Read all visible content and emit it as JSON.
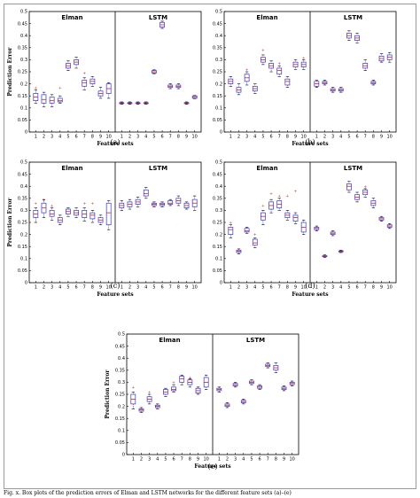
{
  "colors": {
    "box": "#3333cc",
    "median": "#cc2222",
    "outlier": "#cc2222",
    "axis": "#000000"
  },
  "chart_data": [
    {
      "type": "boxplot",
      "caption": "(a)",
      "panels": [
        "Elman",
        "LSTM"
      ],
      "xlabel": "Feature sets",
      "ylabel": "Prediction Error",
      "ylim": [
        0,
        0.5
      ],
      "yticks": [
        0,
        0.05,
        0.1,
        0.15,
        0.2,
        0.25,
        0.3,
        0.35,
        0.4,
        0.45,
        0.5
      ],
      "categories": [
        "1",
        "2",
        "3",
        "4",
        "5",
        "6",
        "7",
        "8",
        "9",
        "10"
      ],
      "series": [
        {
          "name": "Elman",
          "median": [
            0.145,
            0.135,
            0.13,
            0.13,
            0.275,
            0.29,
            0.205,
            0.21,
            0.16,
            0.18
          ],
          "q1": [
            0.13,
            0.12,
            0.12,
            0.125,
            0.265,
            0.28,
            0.19,
            0.2,
            0.15,
            0.16
          ],
          "q3": [
            0.16,
            0.155,
            0.145,
            0.14,
            0.285,
            0.3,
            0.215,
            0.22,
            0.17,
            0.2
          ],
          "min": [
            0.12,
            0.105,
            0.105,
            0.12,
            0.255,
            0.265,
            0.175,
            0.19,
            0.14,
            0.14
          ],
          "max": [
            0.175,
            0.165,
            0.155,
            0.15,
            0.295,
            0.31,
            0.225,
            0.23,
            0.185,
            0.205
          ],
          "outliers": [
            [
              0.185
            ],
            [],
            [],
            [
              0.185
            ],
            [],
            [],
            [
              0.245
            ],
            [],
            [],
            []
          ]
        },
        {
          "name": "LSTM",
          "median": [
            0.12,
            0.12,
            0.12,
            0.12,
            0.25,
            0.445,
            0.19,
            0.19,
            0.12,
            0.145
          ],
          "q1": [
            0.118,
            0.118,
            0.118,
            0.118,
            0.245,
            0.435,
            0.185,
            0.185,
            0.118,
            0.14
          ],
          "q3": [
            0.122,
            0.122,
            0.122,
            0.122,
            0.255,
            0.455,
            0.195,
            0.195,
            0.122,
            0.15
          ],
          "min": [
            0.115,
            0.115,
            0.115,
            0.115,
            0.242,
            0.43,
            0.18,
            0.18,
            0.115,
            0.138
          ],
          "max": [
            0.125,
            0.125,
            0.125,
            0.125,
            0.258,
            0.46,
            0.2,
            0.2,
            0.125,
            0.152
          ],
          "outliers": [
            [],
            [],
            [],
            [],
            [],
            [],
            [],
            [],
            [],
            []
          ]
        }
      ]
    },
    {
      "type": "boxplot",
      "caption": "(b)",
      "panels": [
        "Elman",
        "LSTM"
      ],
      "xlabel": "Feature sets",
      "ylabel": "",
      "ylim": [
        0,
        0.5
      ],
      "yticks": [
        0,
        0.05,
        0.1,
        0.15,
        0.2,
        0.25,
        0.3,
        0.35,
        0.4,
        0.45,
        0.5
      ],
      "categories": [
        "1",
        "2",
        "3",
        "4",
        "5",
        "6",
        "7",
        "8",
        "9",
        "10"
      ],
      "series": [
        {
          "name": "Elman",
          "median": [
            0.21,
            0.175,
            0.225,
            0.18,
            0.3,
            0.275,
            0.255,
            0.21,
            0.28,
            0.28
          ],
          "q1": [
            0.2,
            0.165,
            0.21,
            0.17,
            0.29,
            0.265,
            0.24,
            0.195,
            0.27,
            0.27
          ],
          "q3": [
            0.22,
            0.185,
            0.24,
            0.19,
            0.31,
            0.285,
            0.265,
            0.22,
            0.29,
            0.29
          ],
          "min": [
            0.19,
            0.155,
            0.195,
            0.16,
            0.28,
            0.25,
            0.23,
            0.185,
            0.26,
            0.26
          ],
          "max": [
            0.23,
            0.2,
            0.25,
            0.2,
            0.32,
            0.295,
            0.275,
            0.23,
            0.3,
            0.3
          ],
          "outliers": [
            [],
            [],
            [
              0.26
            ],
            [],
            [
              0.34
            ],
            [],
            [
              0.285
            ],
            [],
            [],
            [
              0.31
            ]
          ]
        },
        {
          "name": "LSTM",
          "median": [
            0.2,
            0.205,
            0.175,
            0.175,
            0.4,
            0.39,
            0.275,
            0.205,
            0.305,
            0.31
          ],
          "q1": [
            0.19,
            0.2,
            0.17,
            0.17,
            0.39,
            0.38,
            0.265,
            0.2,
            0.295,
            0.3
          ],
          "q3": [
            0.21,
            0.21,
            0.18,
            0.18,
            0.41,
            0.4,
            0.285,
            0.21,
            0.315,
            0.32
          ],
          "min": [
            0.185,
            0.195,
            0.165,
            0.165,
            0.38,
            0.37,
            0.255,
            0.195,
            0.29,
            0.29
          ],
          "max": [
            0.215,
            0.215,
            0.185,
            0.185,
            0.42,
            0.41,
            0.3,
            0.215,
            0.325,
            0.33
          ],
          "outliers": [
            [],
            [],
            [],
            [],
            [],
            [],
            [],
            [],
            [],
            []
          ]
        }
      ]
    },
    {
      "type": "boxplot",
      "caption": "(c)",
      "panels": [
        "Elman",
        "LSTM"
      ],
      "xlabel": "Feature sets",
      "ylabel": "Prediction Error",
      "ylim": [
        0,
        0.5
      ],
      "yticks": [
        0,
        0.05,
        0.1,
        0.15,
        0.2,
        0.25,
        0.3,
        0.35,
        0.4,
        0.45,
        0.5
      ],
      "categories": [
        "1",
        "2",
        "3",
        "4",
        "5",
        "6",
        "7",
        "8",
        "9",
        "10"
      ],
      "series": [
        {
          "name": "Elman",
          "median": [
            0.285,
            0.31,
            0.285,
            0.26,
            0.295,
            0.29,
            0.285,
            0.28,
            0.26,
            0.29
          ],
          "q1": [
            0.27,
            0.29,
            0.275,
            0.25,
            0.285,
            0.28,
            0.27,
            0.265,
            0.25,
            0.24
          ],
          "q3": [
            0.3,
            0.33,
            0.3,
            0.27,
            0.305,
            0.3,
            0.3,
            0.29,
            0.27,
            0.33
          ],
          "min": [
            0.25,
            0.27,
            0.26,
            0.24,
            0.275,
            0.27,
            0.255,
            0.25,
            0.24,
            0.22
          ],
          "max": [
            0.31,
            0.345,
            0.31,
            0.28,
            0.31,
            0.31,
            0.31,
            0.3,
            0.28,
            0.34
          ],
          "outliers": [
            [
              0.33
            ],
            [
              0.345
            ],
            [
              0.32
            ],
            [],
            [],
            [],
            [
              0.33
            ],
            [
              0.33
            ],
            [],
            []
          ]
        },
        {
          "name": "LSTM",
          "median": [
            0.32,
            0.325,
            0.335,
            0.37,
            0.325,
            0.325,
            0.33,
            0.34,
            0.32,
            0.33
          ],
          "q1": [
            0.31,
            0.315,
            0.325,
            0.36,
            0.32,
            0.32,
            0.325,
            0.33,
            0.31,
            0.315
          ],
          "q3": [
            0.33,
            0.335,
            0.345,
            0.385,
            0.33,
            0.33,
            0.34,
            0.35,
            0.33,
            0.345
          ],
          "min": [
            0.3,
            0.305,
            0.315,
            0.35,
            0.315,
            0.315,
            0.32,
            0.32,
            0.305,
            0.3
          ],
          "max": [
            0.34,
            0.345,
            0.355,
            0.395,
            0.335,
            0.335,
            0.345,
            0.36,
            0.335,
            0.36
          ],
          "outliers": [
            [],
            [],
            [],
            [],
            [],
            [],
            [],
            [],
            [],
            []
          ]
        }
      ]
    },
    {
      "type": "boxplot",
      "caption": "(d)",
      "panels": [
        "Elman",
        "LSTM"
      ],
      "xlabel": "Feature sets",
      "ylabel": "",
      "ylim": [
        0,
        0.5
      ],
      "yticks": [
        0,
        0.05,
        0.1,
        0.15,
        0.2,
        0.25,
        0.3,
        0.35,
        0.4,
        0.45,
        0.5
      ],
      "categories": [
        "1",
        "2",
        "3",
        "4",
        "5",
        "6",
        "7",
        "8",
        "9",
        "10"
      ],
      "series": [
        {
          "name": "Elman",
          "median": [
            0.22,
            0.13,
            0.215,
            0.165,
            0.275,
            0.32,
            0.325,
            0.28,
            0.27,
            0.23
          ],
          "q1": [
            0.2,
            0.125,
            0.21,
            0.155,
            0.26,
            0.305,
            0.31,
            0.27,
            0.255,
            0.21
          ],
          "q3": [
            0.23,
            0.135,
            0.225,
            0.18,
            0.29,
            0.335,
            0.34,
            0.29,
            0.28,
            0.25
          ],
          "min": [
            0.185,
            0.12,
            0.205,
            0.145,
            0.24,
            0.29,
            0.3,
            0.26,
            0.245,
            0.2
          ],
          "max": [
            0.24,
            0.14,
            0.23,
            0.185,
            0.3,
            0.345,
            0.35,
            0.3,
            0.29,
            0.26
          ],
          "outliers": [
            [
              0.25
            ],
            [],
            [],
            [
              0.2
            ],
            [
              0.32
            ],
            [
              0.37
            ],
            [
              0.36
            ],
            [
              0.36
            ],
            [
              0.38
            ],
            []
          ]
        },
        {
          "name": "LSTM",
          "median": [
            0.225,
            0.11,
            0.205,
            0.13,
            0.4,
            0.355,
            0.375,
            0.33,
            0.265,
            0.235
          ],
          "q1": [
            0.22,
            0.108,
            0.2,
            0.128,
            0.385,
            0.345,
            0.365,
            0.32,
            0.26,
            0.23
          ],
          "q3": [
            0.23,
            0.112,
            0.21,
            0.132,
            0.41,
            0.365,
            0.385,
            0.34,
            0.27,
            0.24
          ],
          "min": [
            0.215,
            0.105,
            0.195,
            0.125,
            0.375,
            0.335,
            0.355,
            0.31,
            0.255,
            0.225
          ],
          "max": [
            0.235,
            0.115,
            0.215,
            0.135,
            0.42,
            0.375,
            0.39,
            0.35,
            0.275,
            0.245
          ],
          "outliers": [
            [],
            [],
            [],
            [],
            [],
            [],
            [
              0.4
            ],
            [],
            [],
            []
          ]
        }
      ]
    },
    {
      "type": "boxplot",
      "caption": "(e)",
      "panels": [
        "Elman",
        "LSTM"
      ],
      "xlabel": "Feature sets",
      "ylabel": "Prediction Error",
      "ylim": [
        0,
        0.5
      ],
      "yticks": [
        0,
        0.05,
        0.1,
        0.15,
        0.2,
        0.25,
        0.3,
        0.35,
        0.4,
        0.45,
        0.5
      ],
      "categories": [
        "1",
        "2",
        "3",
        "4",
        "5",
        "6",
        "7",
        "8",
        "9",
        "10"
      ],
      "series": [
        {
          "name": "Elman",
          "median": [
            0.23,
            0.185,
            0.23,
            0.2,
            0.26,
            0.27,
            0.315,
            0.3,
            0.265,
            0.3
          ],
          "q1": [
            0.21,
            0.18,
            0.22,
            0.195,
            0.25,
            0.265,
            0.3,
            0.29,
            0.255,
            0.28
          ],
          "q3": [
            0.25,
            0.19,
            0.24,
            0.205,
            0.27,
            0.28,
            0.325,
            0.31,
            0.275,
            0.32
          ],
          "min": [
            0.19,
            0.175,
            0.21,
            0.19,
            0.24,
            0.26,
            0.29,
            0.28,
            0.25,
            0.27
          ],
          "max": [
            0.26,
            0.195,
            0.25,
            0.21,
            0.275,
            0.29,
            0.33,
            0.315,
            0.28,
            0.33
          ],
          "outliers": [
            [
              0.28
            ],
            [],
            [
              0.26
            ],
            [],
            [],
            [
              0.3
            ],
            [],
            [
              0.32
            ],
            [],
            []
          ]
        },
        {
          "name": "LSTM",
          "median": [
            0.27,
            0.205,
            0.29,
            0.22,
            0.3,
            0.28,
            0.37,
            0.36,
            0.275,
            0.295
          ],
          "q1": [
            0.265,
            0.2,
            0.285,
            0.215,
            0.295,
            0.275,
            0.365,
            0.35,
            0.27,
            0.29
          ],
          "q3": [
            0.275,
            0.21,
            0.295,
            0.225,
            0.305,
            0.285,
            0.375,
            0.37,
            0.28,
            0.3
          ],
          "min": [
            0.26,
            0.195,
            0.28,
            0.21,
            0.29,
            0.27,
            0.36,
            0.34,
            0.265,
            0.285
          ],
          "max": [
            0.28,
            0.215,
            0.3,
            0.23,
            0.31,
            0.29,
            0.38,
            0.38,
            0.285,
            0.305
          ],
          "outliers": [
            [],
            [],
            [],
            [],
            [],
            [],
            [],
            [],
            [],
            []
          ]
        }
      ]
    }
  ],
  "footer_text": "Fig. x. Box plots of the prediction errors of Elman and LSTM networks for the different feature sets (a)–(e)"
}
